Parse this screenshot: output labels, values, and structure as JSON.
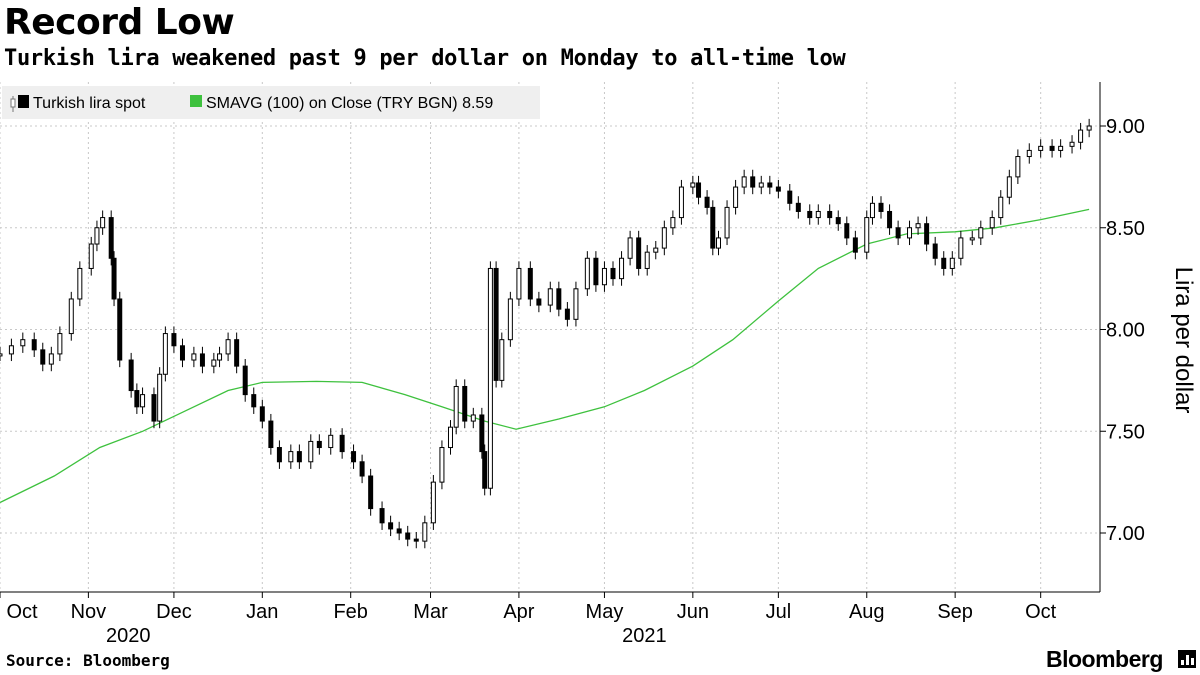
{
  "header": {
    "title": "Record Low",
    "subtitle": "Turkish lira weakened past 9 per dollar on Monday to all-time low"
  },
  "footer": {
    "source": "Source: Bloomberg",
    "brand": "Bloomberg"
  },
  "colors": {
    "candle": "#000000",
    "sma": "#3ec13e",
    "grid": "#c8c8c8",
    "legend_bg": "#efefef"
  },
  "chart_data": {
    "type": "line",
    "title": "Record Low",
    "subtitle": "Turkish lira weakened past 9 per dollar on Monday to all-time low",
    "ylabel": "Lira per dollar",
    "xlabel": "",
    "ylim": [
      6.75,
      9.25
    ],
    "y_ticks": [
      "7.00",
      "7.50",
      "8.00",
      "8.50",
      "9.00"
    ],
    "y_tick_values": [
      7.0,
      7.5,
      8.0,
      8.5,
      9.0
    ],
    "x_range": [
      "2020-10-01",
      "2021-10-19"
    ],
    "x_ticks": [
      {
        "label": "Oct",
        "date": "2020-10-01"
      },
      {
        "label": "Nov",
        "date": "2020-11-01"
      },
      {
        "label": "Dec",
        "date": "2020-12-01"
      },
      {
        "label": "Jan",
        "date": "2021-01-01"
      },
      {
        "label": "Feb",
        "date": "2021-02-01"
      },
      {
        "label": "Mar",
        "date": "2021-03-01"
      },
      {
        "label": "Apr",
        "date": "2021-04-01"
      },
      {
        "label": "May",
        "date": "2021-05-01"
      },
      {
        "label": "Jun",
        "date": "2021-06-01"
      },
      {
        "label": "Jul",
        "date": "2021-07-01"
      },
      {
        "label": "Aug",
        "date": "2021-08-01"
      },
      {
        "label": "Sep",
        "date": "2021-09-01"
      },
      {
        "label": "Oct",
        "date": "2021-10-01"
      }
    ],
    "year_labels": [
      {
        "label": "2020",
        "date": "2020-11-15"
      },
      {
        "label": "2021",
        "date": "2021-05-15"
      }
    ],
    "grid": true,
    "legend_position": "top-left",
    "legend": [
      {
        "name": "Turkish lira spot",
        "marker": "candlestick"
      },
      {
        "name": "SMAVG (100)  on Close (TRY BGN) 8.59",
        "marker": "line"
      }
    ],
    "series": [
      {
        "name": "Turkish lira spot",
        "kind": "candlestick-close",
        "points": [
          [
            "2020-10-01",
            7.88
          ],
          [
            "2020-10-05",
            7.92
          ],
          [
            "2020-10-09",
            7.95
          ],
          [
            "2020-10-13",
            7.9
          ],
          [
            "2020-10-16",
            7.83
          ],
          [
            "2020-10-19",
            7.88
          ],
          [
            "2020-10-22",
            7.98
          ],
          [
            "2020-10-26",
            8.15
          ],
          [
            "2020-10-29",
            8.3
          ],
          [
            "2020-11-02",
            8.42
          ],
          [
            "2020-11-04",
            8.5
          ],
          [
            "2020-11-06",
            8.55
          ],
          [
            "2020-11-09",
            8.35
          ],
          [
            "2020-11-10",
            8.15
          ],
          [
            "2020-11-12",
            7.85
          ],
          [
            "2020-11-16",
            7.7
          ],
          [
            "2020-11-18",
            7.62
          ],
          [
            "2020-11-20",
            7.68
          ],
          [
            "2020-11-24",
            7.55
          ],
          [
            "2020-11-26",
            7.78
          ],
          [
            "2020-11-28",
            7.98
          ],
          [
            "2020-12-01",
            7.92
          ],
          [
            "2020-12-04",
            7.85
          ],
          [
            "2020-12-08",
            7.88
          ],
          [
            "2020-12-11",
            7.82
          ],
          [
            "2020-12-15",
            7.85
          ],
          [
            "2020-12-17",
            7.88
          ],
          [
            "2020-12-20",
            7.95
          ],
          [
            "2020-12-23",
            7.82
          ],
          [
            "2020-12-26",
            7.68
          ],
          [
            "2020-12-29",
            7.62
          ],
          [
            "2021-01-01",
            7.55
          ],
          [
            "2021-01-04",
            7.42
          ],
          [
            "2021-01-07",
            7.35
          ],
          [
            "2021-01-11",
            7.4
          ],
          [
            "2021-01-14",
            7.35
          ],
          [
            "2021-01-18",
            7.45
          ],
          [
            "2021-01-21",
            7.42
          ],
          [
            "2021-01-25",
            7.48
          ],
          [
            "2021-01-29",
            7.4
          ],
          [
            "2021-02-02",
            7.35
          ],
          [
            "2021-02-05",
            7.28
          ],
          [
            "2021-02-08",
            7.12
          ],
          [
            "2021-02-12",
            7.05
          ],
          [
            "2021-02-15",
            7.02
          ],
          [
            "2021-02-18",
            7.0
          ],
          [
            "2021-02-21",
            6.97
          ],
          [
            "2021-02-24",
            6.96
          ],
          [
            "2021-02-27",
            7.05
          ],
          [
            "2021-03-02",
            7.25
          ],
          [
            "2021-03-05",
            7.42
          ],
          [
            "2021-03-08",
            7.52
          ],
          [
            "2021-03-10",
            7.72
          ],
          [
            "2021-03-13",
            7.55
          ],
          [
            "2021-03-16",
            7.58
          ],
          [
            "2021-03-19",
            7.4
          ],
          [
            "2021-03-20",
            7.22
          ],
          [
            "2021-03-22",
            8.3
          ],
          [
            "2021-03-24",
            7.75
          ],
          [
            "2021-03-26",
            7.95
          ],
          [
            "2021-03-29",
            8.15
          ],
          [
            "2021-04-01",
            8.3
          ],
          [
            "2021-04-05",
            8.15
          ],
          [
            "2021-04-08",
            8.12
          ],
          [
            "2021-04-12",
            8.2
          ],
          [
            "2021-04-15",
            8.1
          ],
          [
            "2021-04-18",
            8.05
          ],
          [
            "2021-04-21",
            8.2
          ],
          [
            "2021-04-25",
            8.35
          ],
          [
            "2021-04-28",
            8.22
          ],
          [
            "2021-05-01",
            8.3
          ],
          [
            "2021-05-04",
            8.25
          ],
          [
            "2021-05-07",
            8.35
          ],
          [
            "2021-05-10",
            8.45
          ],
          [
            "2021-05-13",
            8.3
          ],
          [
            "2021-05-16",
            8.38
          ],
          [
            "2021-05-19",
            8.4
          ],
          [
            "2021-05-22",
            8.5
          ],
          [
            "2021-05-25",
            8.55
          ],
          [
            "2021-05-28",
            8.7
          ],
          [
            "2021-06-01",
            8.72
          ],
          [
            "2021-06-03",
            8.65
          ],
          [
            "2021-06-06",
            8.6
          ],
          [
            "2021-06-08",
            8.4
          ],
          [
            "2021-06-10",
            8.45
          ],
          [
            "2021-06-13",
            8.6
          ],
          [
            "2021-06-16",
            8.7
          ],
          [
            "2021-06-19",
            8.75
          ],
          [
            "2021-06-22",
            8.7
          ],
          [
            "2021-06-25",
            8.72
          ],
          [
            "2021-06-28",
            8.7
          ],
          [
            "2021-07-01",
            8.68
          ],
          [
            "2021-07-05",
            8.62
          ],
          [
            "2021-07-08",
            8.58
          ],
          [
            "2021-07-12",
            8.55
          ],
          [
            "2021-07-15",
            8.58
          ],
          [
            "2021-07-19",
            8.55
          ],
          [
            "2021-07-22",
            8.52
          ],
          [
            "2021-07-25",
            8.45
          ],
          [
            "2021-07-28",
            8.38
          ],
          [
            "2021-08-01",
            8.55
          ],
          [
            "2021-08-03",
            8.62
          ],
          [
            "2021-08-06",
            8.58
          ],
          [
            "2021-08-09",
            8.5
          ],
          [
            "2021-08-12",
            8.45
          ],
          [
            "2021-08-16",
            8.5
          ],
          [
            "2021-08-19",
            8.52
          ],
          [
            "2021-08-22",
            8.42
          ],
          [
            "2021-08-25",
            8.35
          ],
          [
            "2021-08-28",
            8.3
          ],
          [
            "2021-08-31",
            8.35
          ],
          [
            "2021-09-03",
            8.45
          ],
          [
            "2021-09-07",
            8.45
          ],
          [
            "2021-09-10",
            8.5
          ],
          [
            "2021-09-14",
            8.55
          ],
          [
            "2021-09-17",
            8.65
          ],
          [
            "2021-09-20",
            8.75
          ],
          [
            "2021-09-23",
            8.85
          ],
          [
            "2021-09-27",
            8.88
          ],
          [
            "2021-10-01",
            8.9
          ],
          [
            "2021-10-05",
            8.88
          ],
          [
            "2021-10-08",
            8.9
          ],
          [
            "2021-10-12",
            8.92
          ],
          [
            "2021-10-15",
            8.98
          ],
          [
            "2021-10-18",
            9.0
          ]
        ]
      },
      {
        "name": "SMAVG (100)  on Close (TRY BGN) 8.59",
        "kind": "line",
        "points": [
          [
            "2020-10-01",
            7.15
          ],
          [
            "2020-10-20",
            7.28
          ],
          [
            "2020-11-05",
            7.42
          ],
          [
            "2020-11-20",
            7.5
          ],
          [
            "2020-12-05",
            7.6
          ],
          [
            "2020-12-20",
            7.7
          ],
          [
            "2021-01-01",
            7.74
          ],
          [
            "2021-01-20",
            7.745
          ],
          [
            "2021-02-05",
            7.74
          ],
          [
            "2021-02-20",
            7.68
          ],
          [
            "2021-03-05",
            7.62
          ],
          [
            "2021-03-20",
            7.55
          ],
          [
            "2021-03-31",
            7.51
          ],
          [
            "2021-04-15",
            7.56
          ],
          [
            "2021-05-01",
            7.62
          ],
          [
            "2021-05-15",
            7.7
          ],
          [
            "2021-06-01",
            7.82
          ],
          [
            "2021-06-15",
            7.95
          ],
          [
            "2021-07-01",
            8.14
          ],
          [
            "2021-07-15",
            8.3
          ],
          [
            "2021-08-01",
            8.42
          ],
          [
            "2021-08-15",
            8.47
          ],
          [
            "2021-09-01",
            8.48
          ],
          [
            "2021-09-15",
            8.5
          ],
          [
            "2021-10-01",
            8.54
          ],
          [
            "2021-10-18",
            8.59
          ]
        ]
      }
    ]
  }
}
